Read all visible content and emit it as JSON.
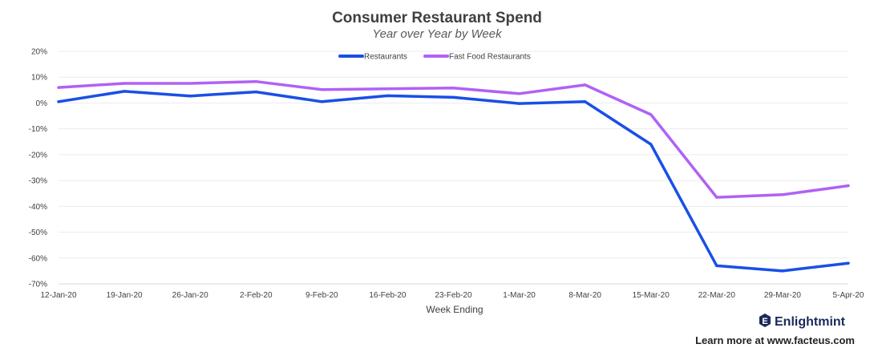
{
  "chart_data": {
    "type": "line",
    "title": "Consumer Restaurant Spend",
    "subtitle": "Year over Year by Week",
    "xlabel": "Week Ending",
    "ylabel": "",
    "categories": [
      "12-Jan-20",
      "19-Jan-20",
      "26-Jan-20",
      "2-Feb-20",
      "9-Feb-20",
      "16-Feb-20",
      "23-Feb-20",
      "1-Mar-20",
      "8-Mar-20",
      "15-Mar-20",
      "22-Mar-20",
      "29-Mar-20",
      "5-Apr-20"
    ],
    "ylim": [
      -70,
      20
    ],
    "yticks": [
      20,
      10,
      0,
      -10,
      -20,
      -30,
      -40,
      -50,
      -60,
      -70
    ],
    "ytick_labels": [
      "20%",
      "10%",
      "0%",
      "-10%",
      "-20%",
      "-30%",
      "-40%",
      "-50%",
      "-60%",
      "-70%"
    ],
    "grid": true,
    "legend_position": "top-center",
    "series": [
      {
        "name": "Restaurants",
        "color": "#1a4fe6",
        "values": [
          0.5,
          4.5,
          2.7,
          4.3,
          0.5,
          2.8,
          2.2,
          -0.2,
          0.5,
          -16,
          -63,
          -65,
          -62
        ]
      },
      {
        "name": "Fast Food Restaurants",
        "color": "#b061f5",
        "values": [
          6.0,
          7.6,
          7.6,
          8.3,
          5.2,
          5.5,
          5.8,
          3.6,
          7.0,
          -4.5,
          -36.5,
          -35.5,
          -32
        ]
      }
    ]
  },
  "branding": {
    "logo_text": "Enlightmint",
    "logo_icon": "hexagon-e-icon",
    "footer_text": "Learn more at www.facteus.com",
    "brand_color": "#1a2a5a"
  }
}
